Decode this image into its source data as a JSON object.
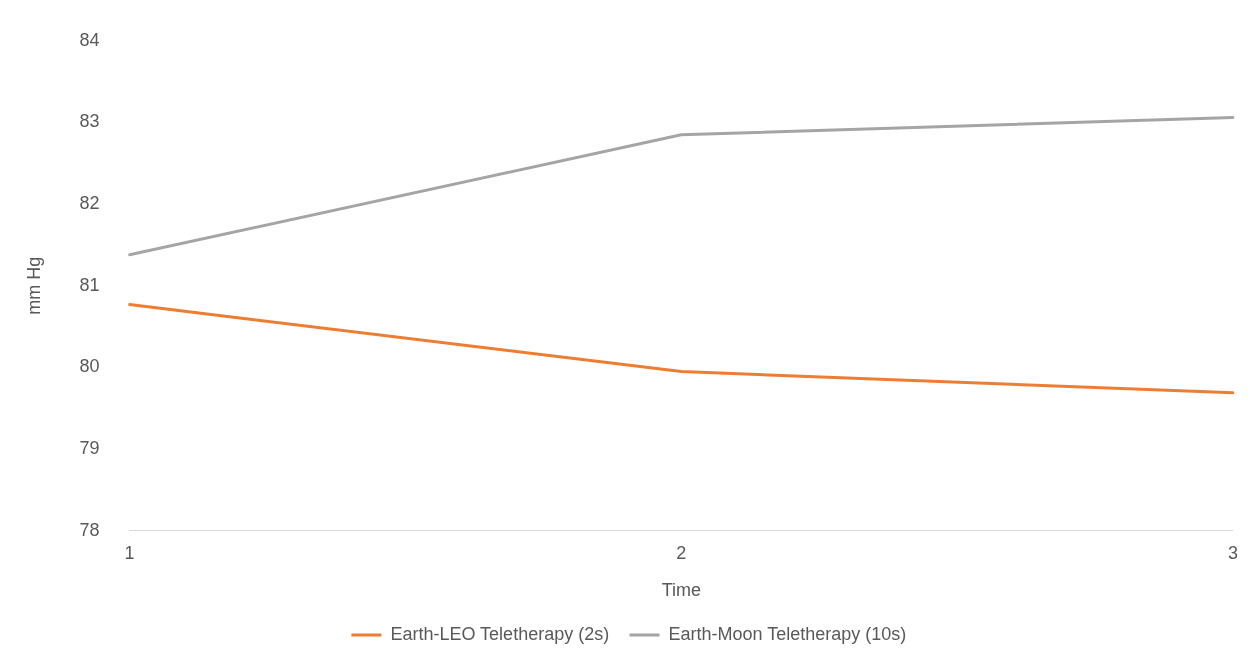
{
  "chart_data": {
    "type": "line",
    "xlabel": "Time",
    "ylabel": "mm Hg",
    "categories": [
      "1",
      "2",
      "3"
    ],
    "series": [
      {
        "name": "Earth-LEO Teletherapy (2s)",
        "color": "#ed7d31",
        "values": [
          80.77,
          79.95,
          79.69
        ]
      },
      {
        "name": "Earth-Moon Teletherapy (10s)",
        "color": "#a5a5a5",
        "values": [
          81.38,
          82.85,
          83.06
        ]
      }
    ],
    "ylim": [
      78,
      84
    ],
    "yticks": [
      78,
      79,
      80,
      81,
      82,
      83,
      84
    ],
    "grid": false,
    "legend": "bottom",
    "marker": "none",
    "line_style": "solid"
  }
}
